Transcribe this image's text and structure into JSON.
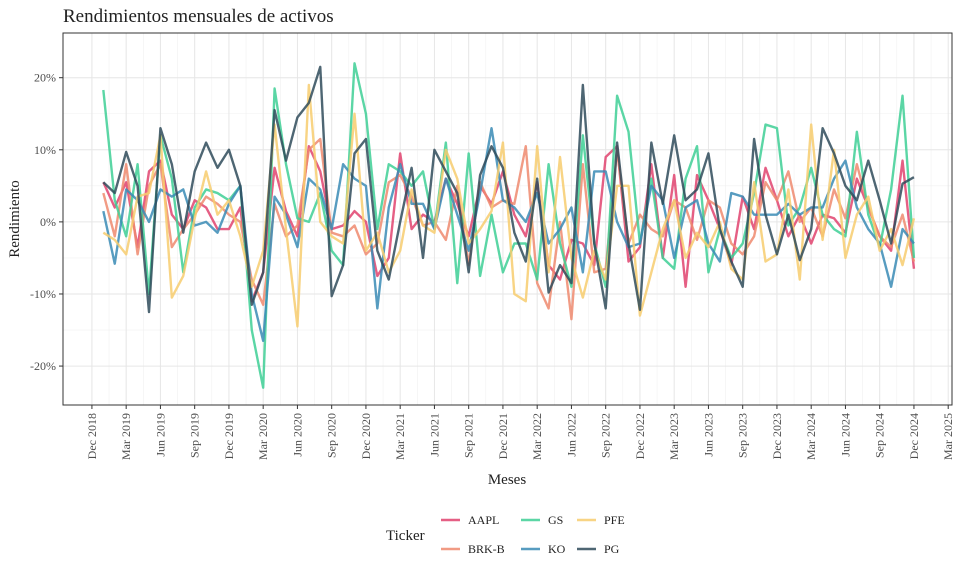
{
  "chart_data": {
    "type": "line",
    "title": "Rendimientos mensuales de activos",
    "x_label": "Meses",
    "y_label": "Rendimiento",
    "legend_title": "Ticker",
    "legend": "bottom",
    "grid": true,
    "x": [
      "2019-01",
      "2019-02",
      "2019-03",
      "2019-04",
      "2019-05",
      "2019-06",
      "2019-07",
      "2019-08",
      "2019-09",
      "2019-10",
      "2019-11",
      "2019-12",
      "2020-01",
      "2020-02",
      "2020-03",
      "2020-04",
      "2020-05",
      "2020-06",
      "2020-07",
      "2020-08",
      "2020-09",
      "2020-10",
      "2020-11",
      "2020-12",
      "2021-01",
      "2021-02",
      "2021-03",
      "2021-04",
      "2021-05",
      "2021-06",
      "2021-07",
      "2021-08",
      "2021-09",
      "2021-10",
      "2021-11",
      "2021-12",
      "2022-01",
      "2022-02",
      "2022-03",
      "2022-04",
      "2022-05",
      "2022-06",
      "2022-07",
      "2022-08",
      "2022-09",
      "2022-10",
      "2022-11",
      "2022-12",
      "2023-01",
      "2023-02",
      "2023-03",
      "2023-04",
      "2023-05",
      "2023-06",
      "2023-07",
      "2023-08",
      "2023-09",
      "2023-10",
      "2023-11",
      "2023-12",
      "2024-01",
      "2024-02",
      "2024-03",
      "2024-04",
      "2024-05",
      "2024-06",
      "2024-07",
      "2024-08",
      "2024-09",
      "2024-10",
      "2024-11",
      "2024-12"
    ],
    "xlim": [
      "2018-09-15",
      "2025-03-11"
    ],
    "xticks": [
      {
        "value": "2018-12",
        "label": "Dec 2018"
      },
      {
        "value": "2019-03",
        "label": "Mar 2019"
      },
      {
        "value": "2019-06",
        "label": "Jun 2019"
      },
      {
        "value": "2019-09",
        "label": "Sep 2019"
      },
      {
        "value": "2019-12",
        "label": "Dec 2019"
      },
      {
        "value": "2020-03",
        "label": "Mar 2020"
      },
      {
        "value": "2020-06",
        "label": "Jun 2020"
      },
      {
        "value": "2020-09",
        "label": "Sep 2020"
      },
      {
        "value": "2020-12",
        "label": "Dec 2020"
      },
      {
        "value": "2021-03",
        "label": "Mar 2021"
      },
      {
        "value": "2021-06",
        "label": "Jun 2021"
      },
      {
        "value": "2021-09",
        "label": "Sep 2021"
      },
      {
        "value": "2021-12",
        "label": "Dec 2021"
      },
      {
        "value": "2022-03",
        "label": "Mar 2022"
      },
      {
        "value": "2022-06",
        "label": "Jun 2022"
      },
      {
        "value": "2022-09",
        "label": "Sep 2022"
      },
      {
        "value": "2022-12",
        "label": "Dec 2022"
      },
      {
        "value": "2023-03",
        "label": "Mar 2023"
      },
      {
        "value": "2023-06",
        "label": "Jun 2023"
      },
      {
        "value": "2023-09",
        "label": "Sep 2023"
      },
      {
        "value": "2023-12",
        "label": "Dec 2023"
      },
      {
        "value": "2024-03",
        "label": "Mar 2024"
      },
      {
        "value": "2024-06",
        "label": "Jun 2024"
      },
      {
        "value": "2024-09",
        "label": "Sep 2024"
      },
      {
        "value": "2024-12",
        "label": "Dec 2024"
      },
      {
        "value": "2025-03",
        "label": "Mar 2025"
      }
    ],
    "ylim": [
      -25.4,
      26.2
    ],
    "yticks": [
      {
        "value": -20,
        "label": "-20%"
      },
      {
        "value": -10,
        "label": "-10%"
      },
      {
        "value": 0,
        "label": "0%"
      },
      {
        "value": 10,
        "label": "10%"
      },
      {
        "value": 20,
        "label": "20%"
      }
    ],
    "series": [
      {
        "name": "AAPL",
        "color": "#e0436e",
        "values": [
          5.5,
          2,
          5.5,
          -3.5,
          7,
          8.5,
          1,
          -1,
          3,
          2,
          -1,
          -1,
          2,
          -11,
          -7,
          7.5,
          1.5,
          -2,
          10.5,
          7,
          -1,
          -0.5,
          1.5,
          0,
          -7.5,
          -5,
          9.5,
          -1,
          1,
          0,
          6,
          2.5,
          -2,
          5,
          2.5,
          7,
          1,
          -2,
          5.5,
          -6,
          -8,
          -2.5,
          -3,
          -6,
          9,
          10.5,
          -5.5,
          -3.5,
          8,
          -5,
          6.5,
          -9,
          6.5,
          3,
          -1,
          -6,
          3.5,
          -1,
          7.5,
          3,
          -2,
          1,
          -3,
          1,
          0.5,
          -1.5,
          6,
          2,
          -2,
          -4,
          8.5,
          -6.5
        ]
      },
      {
        "name": "BRK-B",
        "color": "#ef8a6e",
        "values": [
          4,
          -2,
          8,
          -4.5,
          5,
          8,
          -3.5,
          -1,
          1,
          3.5,
          2.5,
          1,
          0,
          -8,
          -11.5,
          2.5,
          -2,
          -0.5,
          10,
          11.5,
          -1.5,
          -2,
          -0.5,
          -4.5,
          -3,
          5.5,
          6.5,
          3.5,
          -0.5,
          0,
          -2.5,
          5,
          -6,
          5.5,
          2,
          3,
          2.5,
          10.5,
          -8.5,
          -12,
          0,
          -13.5,
          8,
          -7,
          -6.5,
          10,
          -3,
          1,
          -1,
          -2,
          3,
          2,
          -2.5,
          3,
          2,
          -3,
          -4.5,
          -2,
          5.5,
          3,
          7,
          0,
          2,
          -2,
          4.5,
          0.5,
          8,
          2,
          -2,
          -3.5,
          1,
          -5.5
        ]
      },
      {
        "name": "GS",
        "color": "#3ecf95",
        "values": [
          18.3,
          3,
          -2,
          8,
          -10,
          12,
          6,
          -7,
          2,
          4.5,
          4,
          3,
          5,
          -15,
          -23,
          18.5,
          8,
          0.5,
          0,
          4,
          -4,
          -6,
          22,
          15,
          -1,
          8,
          7,
          5,
          7,
          -1,
          11,
          -8.5,
          9.5,
          -7.5,
          1,
          -7,
          -3,
          -3,
          -8,
          8,
          -3,
          -9,
          12,
          -3,
          -9,
          17.5,
          12.5,
          -3,
          6,
          -5,
          -6.5,
          6,
          10.5,
          -7,
          -1,
          -5,
          -3,
          4,
          13.5,
          13,
          -0.5,
          2,
          7.5,
          1,
          -1,
          -2,
          12.5,
          1,
          -3.5,
          4.5,
          17.5,
          -5
        ]
      },
      {
        "name": "KO",
        "color": "#3a8bb5",
        "values": [
          1.5,
          -5.8,
          4.5,
          3,
          0,
          4.5,
          3.5,
          4.5,
          -0.5,
          0,
          -1.5,
          2.5,
          5,
          -10,
          -16.5,
          3.5,
          1,
          -3.5,
          6,
          4.5,
          -1,
          8,
          6,
          5,
          -12,
          2,
          8,
          2.5,
          2.5,
          -1,
          6,
          1,
          -4,
          4,
          13,
          3,
          2,
          0,
          4,
          -3,
          -1,
          2,
          -7,
          7,
          7,
          0,
          -3.5,
          -3,
          5,
          3,
          -5,
          2,
          3,
          -3,
          -5.5,
          4,
          3.5,
          1,
          1,
          1,
          2.5,
          1,
          2,
          2,
          6,
          8.5,
          2,
          -1,
          -3,
          -9,
          -1,
          -3
        ]
      },
      {
        "name": "PFE",
        "color": "#f7cd6e",
        "values": [
          -1.5,
          -2.5,
          -4.5,
          3.5,
          4,
          12,
          -10.5,
          -7.5,
          0.5,
          7,
          1,
          3,
          -2,
          -9,
          -4,
          13.5,
          -1,
          -14.5,
          19,
          0,
          -2,
          -3,
          15,
          -4,
          -1.5,
          -7,
          -4,
          4.5,
          -0.5,
          -1.5,
          10,
          6,
          -3,
          -1,
          1.5,
          11,
          -10,
          -11,
          10.5,
          -7,
          9,
          -5,
          -10.5,
          -4,
          -8,
          5,
          5,
          -13,
          -7,
          -1,
          3,
          -5,
          -1.5,
          -3.5,
          0,
          -6.5,
          -8,
          5.5,
          -5.5,
          -4.5,
          4.5,
          -8,
          13.5,
          -2.5,
          10,
          -5,
          1,
          3.5,
          -4,
          -1,
          -6,
          0.5
        ]
      },
      {
        "name": "PG",
        "color": "#2f4b5a",
        "values": [
          5.5,
          4,
          9.7,
          5,
          -12.5,
          13,
          8,
          -1.5,
          7,
          11,
          7.5,
          10,
          5,
          -11.5,
          -7,
          15.5,
          8.5,
          14.5,
          16.5,
          21.5,
          -10.3,
          -6,
          9.5,
          11.5,
          -4,
          -8,
          0,
          7.5,
          -5,
          10,
          7,
          4,
          -7,
          6.5,
          10.5,
          7.5,
          -1.5,
          -5.5,
          6,
          -9.8,
          -6,
          -8.5,
          19,
          -3,
          -12,
          11,
          -3,
          -12.2,
          11,
          2.5,
          12,
          3,
          4.5,
          9.5,
          -1,
          -5.5,
          -9,
          11.5,
          1,
          -4.5,
          1,
          -5.3,
          -1,
          13,
          9.5,
          5,
          3,
          8.5,
          3,
          -3,
          5.3,
          6.2
        ]
      }
    ]
  }
}
